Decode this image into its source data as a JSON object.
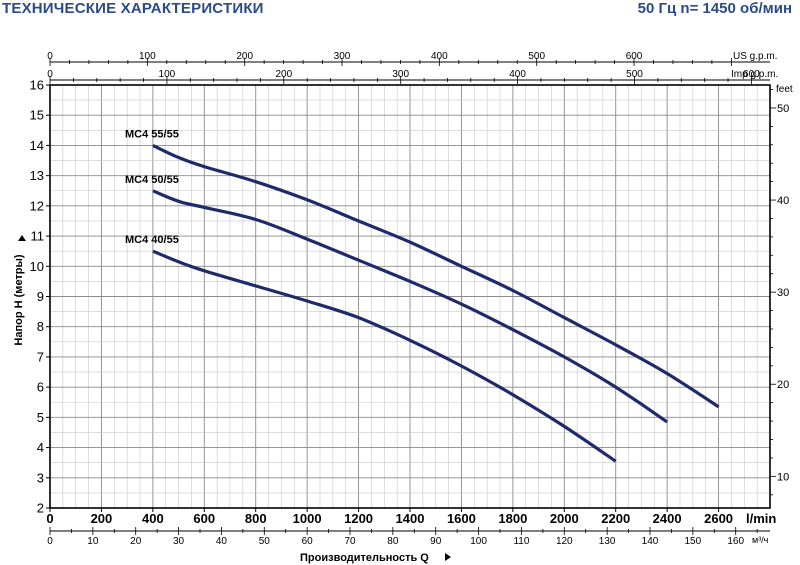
{
  "header": {
    "title": "ТЕХНИЧЕСКИЕ ХАРАКТЕРИСТИКИ",
    "subtitle": "50 Гц  n= 1450 об/мин"
  },
  "colors": {
    "curve": "#1f2a6b",
    "text": "#000000",
    "title": "#2b4a8c",
    "grid": "#9a9a9a"
  },
  "chart_data": {
    "type": "line",
    "title": "",
    "xlabel": "Производительность  Q",
    "ylabel": "Напор H (метры)",
    "xunit": "l/min",
    "xunit2": "м³/ч",
    "yunit_right": "feet",
    "xlim": [
      0,
      2800
    ],
    "ylim": [
      2,
      16
    ],
    "x_ticks": [
      0,
      200,
      400,
      600,
      800,
      1000,
      1200,
      1400,
      1600,
      1800,
      2000,
      2200,
      2400,
      2600
    ],
    "x_tick_labels": [
      "0",
      "200",
      "400",
      "600",
      "800",
      "1000",
      "1200",
      "1400",
      "1600",
      "1800",
      "2000",
      "2200",
      "2400",
      "2600"
    ],
    "y_ticks": [
      2,
      3,
      4,
      5,
      6,
      7,
      8,
      9,
      10,
      11,
      12,
      13,
      14,
      15,
      16
    ],
    "y_tick_labels": [
      "2",
      "3",
      "4",
      "5",
      "6",
      "7",
      "8",
      "9",
      "10",
      "11",
      "12",
      "13",
      "14",
      "15",
      "16"
    ],
    "m3h_ticks": [
      0,
      10,
      20,
      30,
      40,
      50,
      60,
      70,
      80,
      90,
      100,
      110,
      120,
      130,
      140,
      150,
      160
    ],
    "m3h_tick_labels": [
      "0",
      "10",
      "20",
      "30",
      "40",
      "50",
      "60",
      "70",
      "80",
      "90",
      "100",
      "110",
      "120",
      "130",
      "140",
      "150",
      "160"
    ],
    "usgpm_label": "US g.p.m.",
    "usgpm_ticks": [
      0,
      100,
      200,
      300,
      400,
      500,
      600
    ],
    "usgpm_tick_labels": [
      "0",
      "100",
      "200",
      "300",
      "400",
      "500",
      "600"
    ],
    "impgpm_label": "Imp g.p.m.",
    "impgpm_ticks": [
      0,
      100,
      200,
      300,
      400,
      500,
      600
    ],
    "impgpm_tick_labels": [
      "0",
      "100",
      "200",
      "300",
      "400",
      "500",
      "600"
    ],
    "feet_ticks": [
      10,
      20,
      30,
      40,
      50
    ],
    "feet_tick_labels": [
      "10",
      "20",
      "30",
      "40",
      "50"
    ],
    "grid": true,
    "series": [
      {
        "name": "MC4 55/55",
        "x": [
          400,
          500,
          600,
          800,
          1000,
          1200,
          1400,
          1600,
          1800,
          2000,
          2200,
          2400,
          2600
        ],
        "y": [
          14.0,
          13.6,
          13.3,
          12.8,
          12.2,
          11.5,
          10.8,
          10.0,
          9.2,
          8.3,
          7.4,
          6.45,
          5.35
        ]
      },
      {
        "name": "MC4 50/55",
        "x": [
          400,
          500,
          600,
          800,
          1000,
          1200,
          1400,
          1600,
          1800,
          2000,
          2200,
          2400
        ],
        "y": [
          12.5,
          12.15,
          11.95,
          11.55,
          10.9,
          10.2,
          9.5,
          8.75,
          7.9,
          7.0,
          6.0,
          4.85
        ]
      },
      {
        "name": "MC4 40/55",
        "x": [
          400,
          500,
          600,
          800,
          1000,
          1200,
          1400,
          1600,
          1800,
          2000,
          2200
        ],
        "y": [
          10.5,
          10.15,
          9.85,
          9.35,
          8.85,
          8.3,
          7.55,
          6.7,
          5.75,
          4.7,
          3.55
        ]
      }
    ]
  }
}
